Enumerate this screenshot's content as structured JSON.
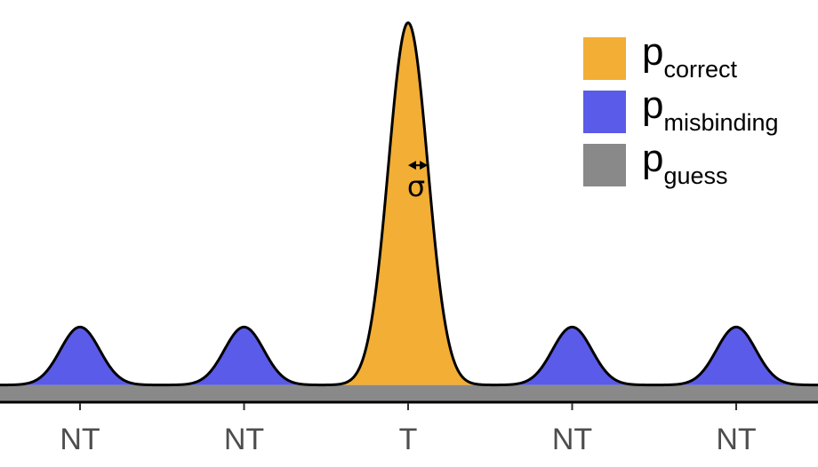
{
  "chart_data": {
    "type": "area",
    "title": "",
    "xlabel": "",
    "ylabel": "",
    "categories": [
      "NT",
      "NT",
      "T",
      "NT",
      "NT"
    ],
    "x_positions": [
      -2,
      -1,
      0,
      1,
      2
    ],
    "target_index": 2,
    "components": [
      {
        "key": "correct",
        "symbol": "p",
        "subscript": "correct",
        "color": "#F2AE35"
      },
      {
        "key": "misbinding",
        "symbol": "p",
        "subscript": "misbinding",
        "color": "#5A5BE8"
      },
      {
        "key": "guess",
        "symbol": "p",
        "subscript": "guess",
        "color": "#898989"
      }
    ],
    "peak_heights": {
      "correct": 1.0,
      "misbinding": 0.16,
      "guess": 0.045
    },
    "sigma": 0.12,
    "annotation": {
      "label": "σ"
    },
    "legend_position": "top-right",
    "grid": false
  }
}
